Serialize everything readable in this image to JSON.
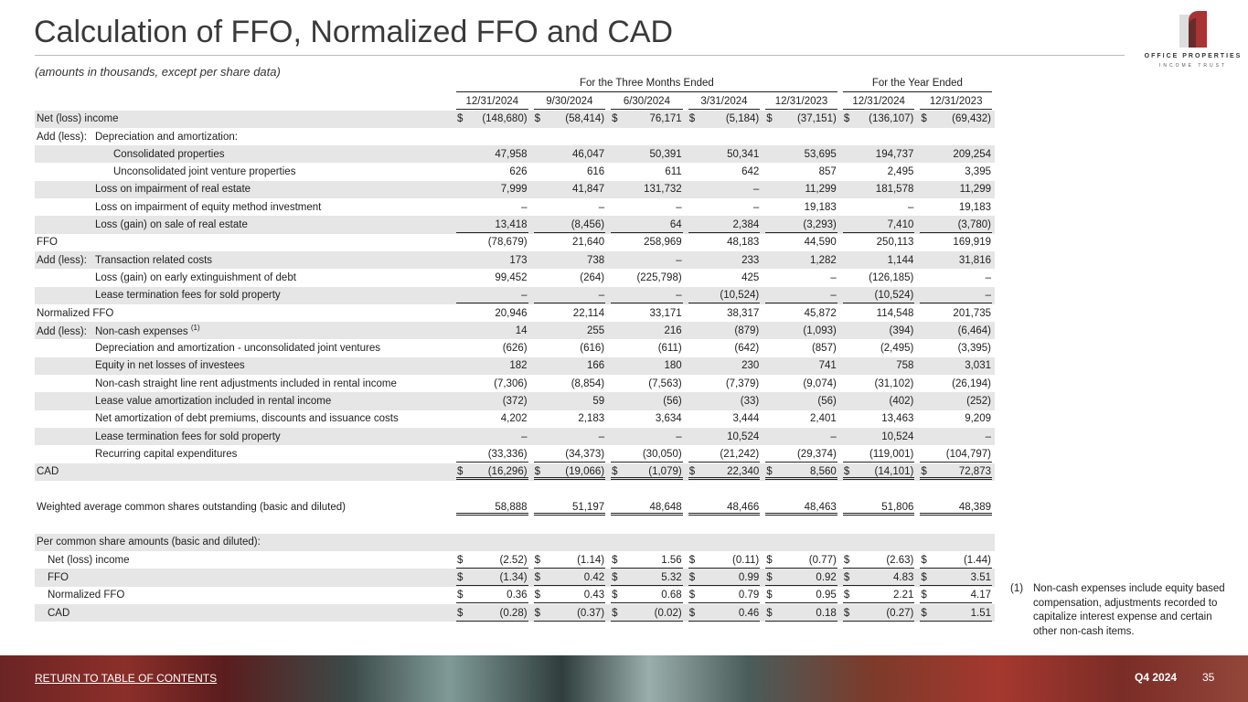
{
  "title": "Calculation of FFO, Normalized FFO and CAD",
  "subtitle": "(amounts in thousands, except per share data)",
  "logo": {
    "line1": "OFFICE PROPERTIES",
    "line2": "INCOME TRUST"
  },
  "groups": {
    "three_months": "For the Three Months Ended",
    "year": "For the Year Ended"
  },
  "columns": [
    "12/31/2024",
    "9/30/2024",
    "6/30/2024",
    "3/31/2024",
    "12/31/2023",
    "12/31/2024",
    "12/31/2023"
  ],
  "rows": [
    {
      "prefix": "",
      "label": "Net (loss) income",
      "indent": 0,
      "dollar": true,
      "values": [
        "(148,680)",
        "(58,414)",
        "76,171",
        "(5,184)",
        "(37,151)",
        "(136,107)",
        "(69,432)"
      ]
    },
    {
      "prefix": "Add (less):",
      "label": "Depreciation and amortization:",
      "indent": 0,
      "values": []
    },
    {
      "prefix": "",
      "label": "Consolidated properties",
      "indent": 2,
      "values": [
        "47,958",
        "46,047",
        "50,391",
        "50,341",
        "53,695",
        "194,737",
        "209,254"
      ]
    },
    {
      "prefix": "",
      "label": "Unconsolidated joint venture properties",
      "indent": 2,
      "values": [
        "626",
        "616",
        "611",
        "642",
        "857",
        "2,495",
        "3,395"
      ]
    },
    {
      "prefix": "",
      "label": "Loss on impairment of real estate",
      "indent": 1,
      "values": [
        "7,999",
        "41,847",
        "131,732",
        "–",
        "11,299",
        "181,578",
        "11,299"
      ]
    },
    {
      "prefix": "",
      "label": "Loss on impairment of equity method investment",
      "indent": 1,
      "values": [
        "–",
        "–",
        "–",
        "–",
        "19,183",
        "–",
        "19,183"
      ]
    },
    {
      "prefix": "",
      "label": "Loss (gain) on sale of real estate",
      "indent": 1,
      "underline": true,
      "values": [
        "13,418",
        "(8,456)",
        "64",
        "2,384",
        "(3,293)",
        "7,410",
        "(3,780)"
      ]
    },
    {
      "prefix": "",
      "label": "FFO",
      "indent": 0,
      "values": [
        "(78,679)",
        "21,640",
        "258,969",
        "48,183",
        "44,590",
        "250,113",
        "169,919"
      ]
    },
    {
      "prefix": "Add (less):",
      "label": "Transaction related costs",
      "indent": 0,
      "values": [
        "173",
        "738",
        "–",
        "233",
        "1,282",
        "1,144",
        "31,816"
      ]
    },
    {
      "prefix": "",
      "label": "Loss (gain) on early extinguishment of debt",
      "indent": 1,
      "values": [
        "99,452",
        "(264)",
        "(225,798)",
        "425",
        "–",
        "(126,185)",
        "–"
      ]
    },
    {
      "prefix": "",
      "label": "Lease termination fees for sold property",
      "indent": 1,
      "underline": true,
      "values": [
        "–",
        "–",
        "–",
        "(10,524)",
        "–",
        "(10,524)",
        "–"
      ]
    },
    {
      "prefix": "",
      "label": "Normalized FFO",
      "indent": 0,
      "values": [
        "20,946",
        "22,114",
        "33,171",
        "38,317",
        "45,872",
        "114,548",
        "201,735"
      ]
    },
    {
      "prefix": "Add (less):",
      "label": "Non-cash expenses",
      "sup": "(1)",
      "indent": 0,
      "values": [
        "14",
        "255",
        "216",
        "(879)",
        "(1,093)",
        "(394)",
        "(6,464)"
      ]
    },
    {
      "prefix": "",
      "label": "Depreciation and amortization - unconsolidated joint ventures",
      "indent": 1,
      "values": [
        "(626)",
        "(616)",
        "(611)",
        "(642)",
        "(857)",
        "(2,495)",
        "(3,395)"
      ]
    },
    {
      "prefix": "",
      "label": "Equity in net losses of investees",
      "indent": 1,
      "values": [
        "182",
        "166",
        "180",
        "230",
        "741",
        "758",
        "3,031"
      ]
    },
    {
      "prefix": "",
      "label": "Non-cash straight line rent adjustments included in rental income",
      "indent": 1,
      "values": [
        "(7,306)",
        "(8,854)",
        "(7,563)",
        "(7,379)",
        "(9,074)",
        "(31,102)",
        "(26,194)"
      ]
    },
    {
      "prefix": "",
      "label": "Lease value amortization included in rental income",
      "indent": 1,
      "values": [
        "(372)",
        "59",
        "(56)",
        "(33)",
        "(56)",
        "(402)",
        "(252)"
      ]
    },
    {
      "prefix": "",
      "label": "Net amortization of debt premiums, discounts and issuance costs",
      "indent": 1,
      "values": [
        "4,202",
        "2,183",
        "3,634",
        "3,444",
        "2,401",
        "13,463",
        "9,209"
      ]
    },
    {
      "prefix": "",
      "label": "Lease termination fees for sold property",
      "indent": 1,
      "values": [
        "–",
        "–",
        "–",
        "10,524",
        "–",
        "10,524",
        "–"
      ]
    },
    {
      "prefix": "",
      "label": "Recurring capital expenditures",
      "indent": 1,
      "underline": true,
      "values": [
        "(33,336)",
        "(34,373)",
        "(30,050)",
        "(21,242)",
        "(29,374)",
        "(119,001)",
        "(104,797)"
      ]
    },
    {
      "prefix": "",
      "label": "CAD",
      "indent": 0,
      "dollar": true,
      "double": true,
      "values": [
        "(16,296)",
        "(19,066)",
        "(1,079)",
        "22,340",
        "8,560",
        "(14,101)",
        "72,873"
      ]
    },
    {
      "blank": true
    },
    {
      "prefix": "",
      "label": "Weighted average common shares outstanding (basic and diluted)",
      "indent": 0,
      "double": true,
      "values": [
        "58,888",
        "51,197",
        "48,648",
        "48,466",
        "48,463",
        "51,806",
        "48,389"
      ]
    },
    {
      "blank": true
    },
    {
      "prefix": "",
      "label": "Per common share amounts (basic and diluted):",
      "indent": 0,
      "values": []
    },
    {
      "prefix": "",
      "label": "Net (loss) income",
      "indent": 3,
      "dollar": true,
      "underline": true,
      "values": [
        "(2.52)",
        "(1.14)",
        "1.56",
        "(0.11)",
        "(0.77)",
        "(2.63)",
        "(1.44)"
      ]
    },
    {
      "prefix": "",
      "label": "FFO",
      "indent": 3,
      "dollar": true,
      "underline": true,
      "values": [
        "(1.34)",
        "0.42",
        "5.32",
        "0.99",
        "0.92",
        "4.83",
        "3.51"
      ]
    },
    {
      "prefix": "",
      "label": "Normalized FFO",
      "indent": 3,
      "dollar": true,
      "underline": true,
      "values": [
        "0.36",
        "0.43",
        "0.68",
        "0.79",
        "0.95",
        "2.21",
        "4.17"
      ]
    },
    {
      "prefix": "",
      "label": "CAD",
      "indent": 3,
      "dollar": true,
      "underline": true,
      "values": [
        "(0.28)",
        "(0.37)",
        "(0.02)",
        "0.46",
        "0.18",
        "(0.27)",
        "1.51"
      ]
    }
  ],
  "dollar_sign": "$",
  "footnote": {
    "num": "(1)",
    "text": "Non-cash expenses include equity based compensation, adjustments recorded to capitalize interest expense and certain other non-cash items."
  },
  "footer": {
    "toc": "RETURN TO TABLE OF CONTENTS",
    "quarter": "Q4 2024",
    "page": "35"
  }
}
